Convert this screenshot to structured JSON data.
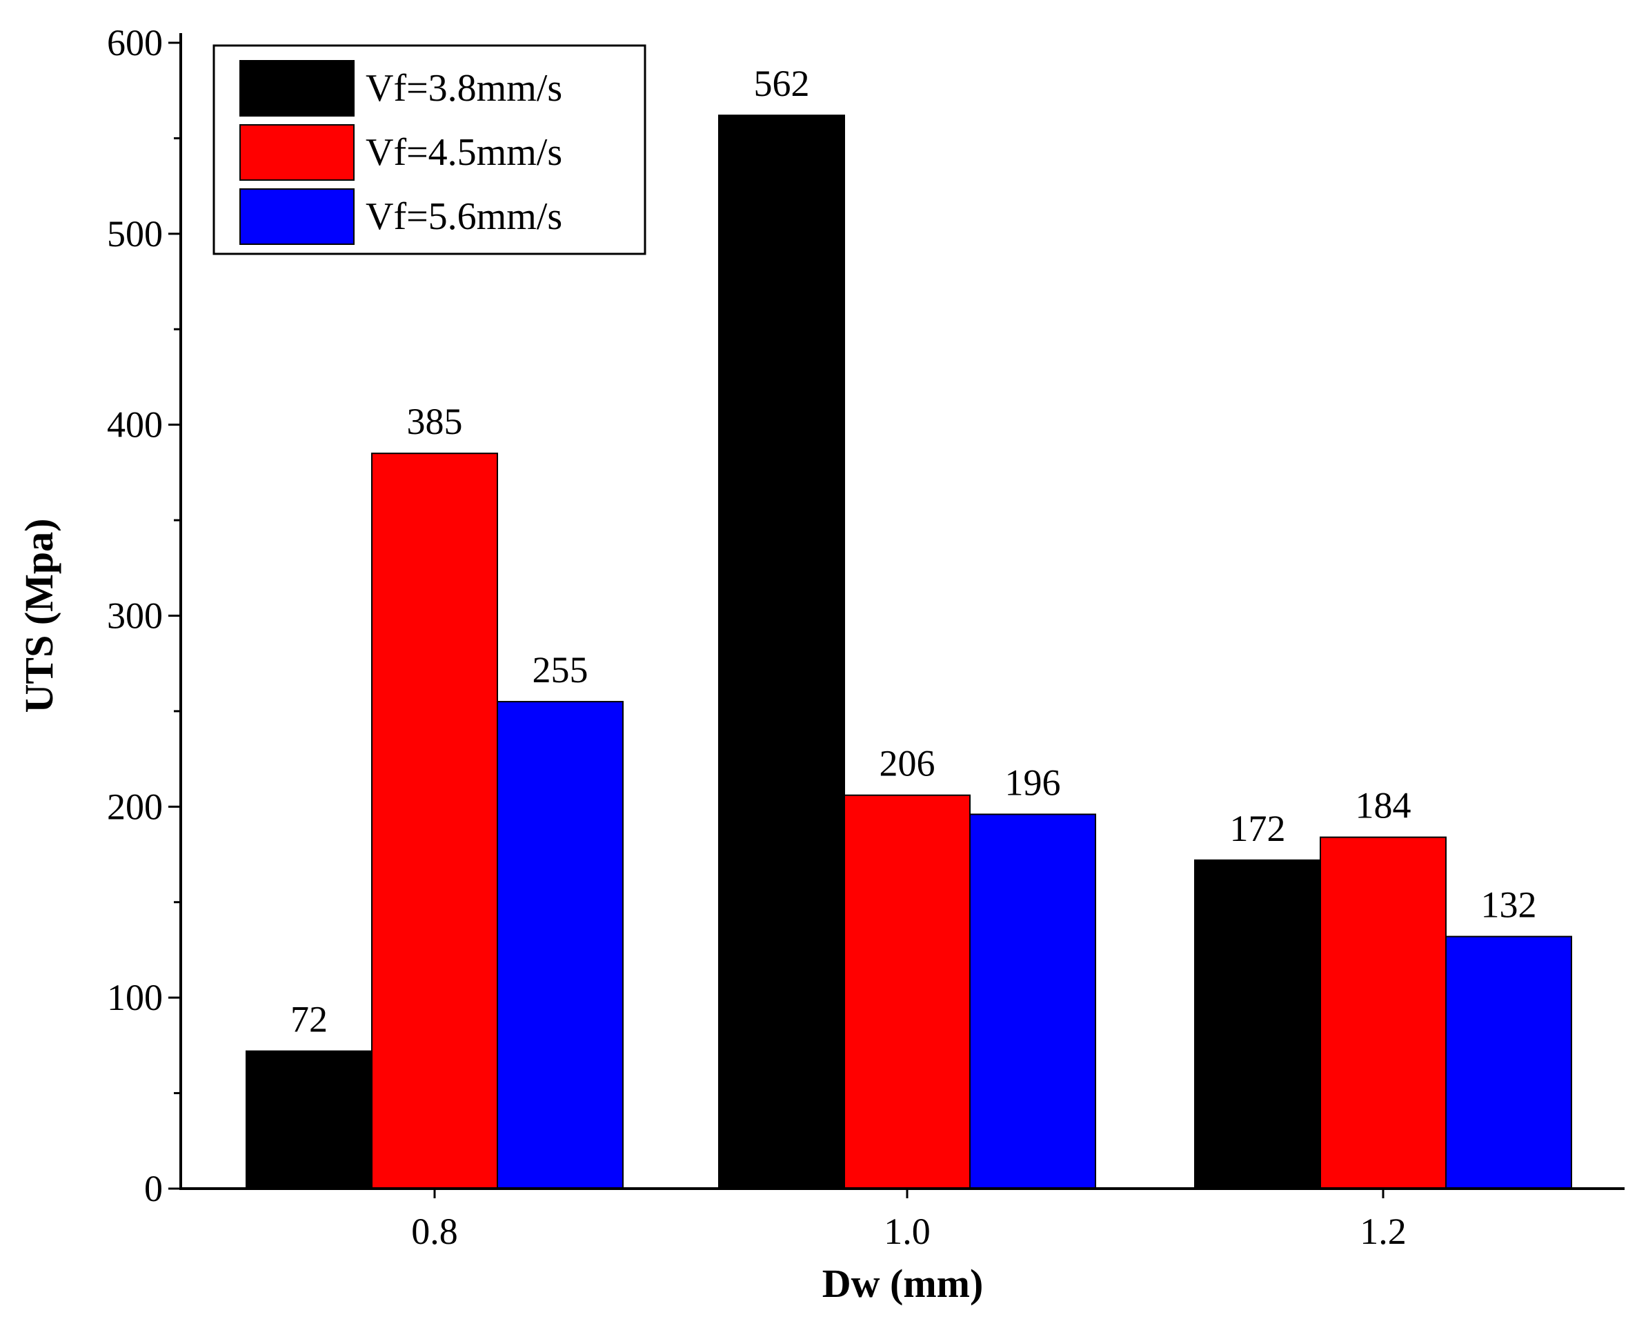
{
  "chart_data": {
    "type": "bar",
    "title": "",
    "xlabel": "Dw (mm)",
    "ylabel": "UTS (Mpa)",
    "categories": [
      "0.8",
      "1.0",
      "1.2"
    ],
    "series": [
      {
        "name": "Vf=3.8mm/s",
        "color": "#000000",
        "values": [
          72,
          562,
          172
        ]
      },
      {
        "name": "Vf=4.5mm/s",
        "color": "#ff0000",
        "values": [
          385,
          206,
          184
        ]
      },
      {
        "name": "Vf=5.6mm/s",
        "color": "#0000ff",
        "values": [
          255,
          196,
          132
        ]
      }
    ],
    "data_labels": [
      [
        "72",
        "562",
        "172"
      ],
      [
        "385",
        "206",
        "184"
      ],
      [
        "255",
        "196",
        "132"
      ]
    ],
    "ylim": [
      0,
      600
    ],
    "yticks": [
      "0",
      "100",
      "200",
      "300",
      "400",
      "500",
      "600"
    ],
    "grid": false,
    "legend_position": "top-left"
  }
}
